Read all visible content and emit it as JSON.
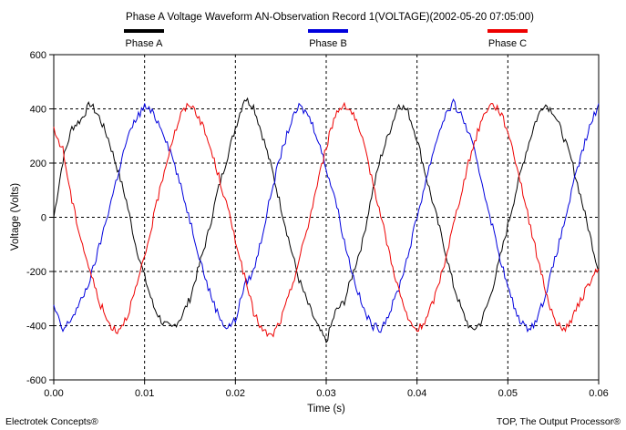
{
  "chart_data": {
    "type": "line",
    "title": "Phase A Voltage Waveform AN-Observation Record 1(VOLTAGE)(2002-05-20 07:05:00)",
    "xlabel": "Time (s)",
    "ylabel": "Voltage (Volts)",
    "xlim": [
      0,
      0.06
    ],
    "ylim": [
      -600,
      600
    ],
    "x_ticks": [
      "0.00",
      "0.01",
      "0.02",
      "0.03",
      "0.04",
      "0.05",
      "0.06"
    ],
    "y_ticks": [
      "600",
      "400",
      "200",
      "0",
      "-200",
      "-400",
      "-600"
    ],
    "grid": true,
    "legend_position": "top",
    "series": [
      {
        "name": "Phase A",
        "color": "#000000",
        "x": [
          0,
          0.001,
          0.002,
          0.003,
          0.004,
          0.005,
          0.006,
          0.007,
          0.008,
          0.009,
          0.01,
          0.011,
          0.012,
          0.013,
          0.014,
          0.015,
          0.016,
          0.017,
          0.018,
          0.019,
          0.02,
          0.021,
          0.022,
          0.023,
          0.024,
          0.025,
          0.026,
          0.027,
          0.028,
          0.029,
          0.03,
          0.031,
          0.032,
          0.033,
          0.034,
          0.035,
          0.036,
          0.037,
          0.038,
          0.039,
          0.04,
          0.041,
          0.042,
          0.043,
          0.044,
          0.045,
          0.046,
          0.047,
          0.048,
          0.049,
          0.05,
          0.051,
          0.052,
          0.053,
          0.054,
          0.055,
          0.056,
          0.057,
          0.058,
          0.059,
          0.06
        ],
        "values": [
          0,
          210,
          330,
          360,
          420,
          370,
          290,
          180,
          60,
          -100,
          -220,
          -330,
          -390,
          -410,
          -370,
          -300,
          -180,
          -60,
          90,
          210,
          330,
          440,
          410,
          300,
          180,
          40,
          -100,
          -230,
          -320,
          -400,
          -460,
          -350,
          -310,
          -200,
          -90,
          80,
          220,
          320,
          420,
          390,
          290,
          150,
          20,
          -110,
          -250,
          -350,
          -420,
          -390,
          -300,
          -170,
          -30,
          110,
          240,
          350,
          420,
          390,
          310,
          210,
          80,
          -60,
          -200
        ]
      },
      {
        "name": "Phase B",
        "color": "#0000dd",
        "x": [
          0,
          0.001,
          0.002,
          0.003,
          0.004,
          0.005,
          0.006,
          0.007,
          0.008,
          0.009,
          0.01,
          0.011,
          0.012,
          0.013,
          0.014,
          0.015,
          0.016,
          0.017,
          0.018,
          0.019,
          0.02,
          0.021,
          0.022,
          0.023,
          0.024,
          0.025,
          0.026,
          0.027,
          0.028,
          0.029,
          0.03,
          0.031,
          0.032,
          0.033,
          0.034,
          0.035,
          0.036,
          0.037,
          0.038,
          0.039,
          0.04,
          0.041,
          0.042,
          0.043,
          0.044,
          0.045,
          0.046,
          0.047,
          0.048,
          0.049,
          0.05,
          0.051,
          0.052,
          0.053,
          0.054,
          0.055,
          0.056,
          0.057,
          0.058,
          0.059,
          0.06
        ],
        "values": [
          -330,
          -420,
          -370,
          -310,
          -230,
          -110,
          20,
          150,
          280,
          360,
          410,
          380,
          320,
          230,
          110,
          -10,
          -140,
          -260,
          -350,
          -410,
          -380,
          -250,
          -200,
          -60,
          100,
          230,
          340,
          410,
          380,
          300,
          180,
          70,
          -90,
          -220,
          -330,
          -400,
          -410,
          -350,
          -260,
          -140,
          0,
          140,
          270,
          370,
          420,
          370,
          280,
          150,
          10,
          -130,
          -260,
          -360,
          -410,
          -390,
          -300,
          -180,
          -50,
          90,
          220,
          330,
          420
        ]
      },
      {
        "name": "Phase C",
        "color": "#ee0000",
        "x": [
          0,
          0.001,
          0.002,
          0.003,
          0.004,
          0.005,
          0.006,
          0.007,
          0.008,
          0.009,
          0.01,
          0.011,
          0.012,
          0.013,
          0.014,
          0.015,
          0.016,
          0.017,
          0.018,
          0.019,
          0.02,
          0.021,
          0.022,
          0.023,
          0.024,
          0.025,
          0.026,
          0.027,
          0.028,
          0.029,
          0.03,
          0.031,
          0.032,
          0.033,
          0.034,
          0.035,
          0.036,
          0.037,
          0.038,
          0.039,
          0.04,
          0.041,
          0.042,
          0.043,
          0.044,
          0.045,
          0.046,
          0.047,
          0.048,
          0.049,
          0.05,
          0.051,
          0.052,
          0.053,
          0.054,
          0.055,
          0.056,
          0.057,
          0.058,
          0.059,
          0.06
        ],
        "values": [
          320,
          250,
          60,
          -80,
          -200,
          -310,
          -390,
          -420,
          -370,
          -270,
          -150,
          0,
          150,
          280,
          380,
          420,
          370,
          280,
          170,
          50,
          -80,
          -220,
          -350,
          -420,
          -440,
          -380,
          -280,
          -160,
          -30,
          120,
          260,
          380,
          420,
          380,
          280,
          150,
          10,
          -140,
          -270,
          -380,
          -420,
          -380,
          -290,
          -170,
          -30,
          110,
          240,
          350,
          420,
          400,
          320,
          190,
          40,
          -110,
          -250,
          -370,
          -420,
          -380,
          -310,
          -240,
          -190
        ]
      }
    ],
    "footer_left": "Electrotek Concepts®",
    "footer_right": "TOP, The Output Processor®"
  }
}
